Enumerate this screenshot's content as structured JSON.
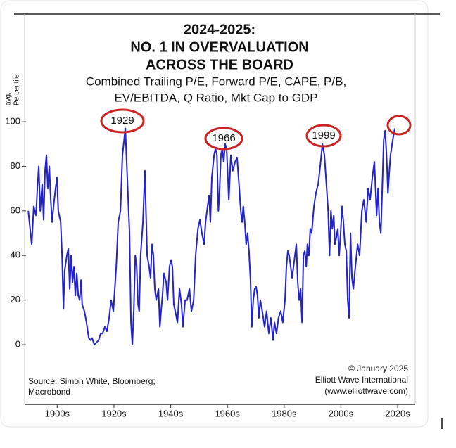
{
  "chart_data": {
    "type": "line",
    "title": [
      "2024-2025:",
      "NO. 1 IN OVERVALUATION",
      "ACROSS THE BOARD"
    ],
    "subtitle": [
      "Combined Trailing P/E, Forward P/E, CAPE, P/B,",
      "EV/EBITDA, Q Ratio, Mkt Cap to GDP"
    ],
    "y_label": [
      "avg.",
      "Percentile"
    ],
    "source": [
      "Source: Simon White, Bloomberg;",
      "Macrobond"
    ],
    "credit": [
      "© January 2025",
      "Elliott Wave International",
      "(www.elliottwave.com)"
    ],
    "annotations": [
      "1929",
      "1966",
      "1999"
    ],
    "x": [
      1894.8,
      1895.2,
      1896.0,
      1896.7,
      1897.5,
      1898.0,
      1898.5,
      1899.0,
      1899.7,
      1900.2,
      1900.7,
      1901.2,
      1901.7,
      1902.2,
      1902.7,
      1903.2,
      1903.7,
      1904.4,
      1904.9,
      1905.4,
      1906.2,
      1906.7,
      1907.2,
      1907.6,
      1908.4,
      1908.9,
      1909.4,
      1909.9,
      1910.4,
      1910.9,
      1911.4,
      1911.9,
      1912.4,
      1912.9,
      1913.4,
      1913.8,
      1914.6,
      1915.3,
      1916.1,
      1916.8,
      1917.3,
      1918.1,
      1918.8,
      1919.6,
      1920.3,
      1921.0,
      1921.8,
      1922.5,
      1923.3,
      1924.0,
      1924.8,
      1925.8,
      1926.5,
      1927.3,
      1928.0,
      1929.0,
      1929.7,
      1930.5,
      1931.0,
      1931.5,
      1932.0,
      1932.5,
      1933.0,
      1933.5,
      1933.9,
      1934.4,
      1935.2,
      1935.9,
      1936.7,
      1937.4,
      1937.9,
      1938.4,
      1938.9,
      1939.4,
      1939.9,
      1940.7,
      1941.2,
      1941.6,
      1942.1,
      1942.6,
      1943.4,
      1943.9,
      1944.6,
      1945.1,
      1945.6,
      1946.1,
      1946.6,
      1947.4,
      1948.1,
      1948.8,
      1949.3,
      1950.1,
      1950.8,
      1951.6,
      1952.3,
      1953.1,
      1953.8,
      1954.6,
      1955.3,
      1956.0,
      1956.8,
      1957.3,
      1958.0,
      1958.5,
      1959.0,
      1959.5,
      1960.3,
      1960.8,
      1961.3,
      1961.8,
      1962.2,
      1962.7,
      1963.2,
      1963.7,
      1964.2,
      1964.7,
      1965.5,
      1966.2,
      1966.9,
      1967.7,
      1968.4,
      1969.2,
      1969.7,
      1970.2,
      1970.6,
      1971.1,
      1971.6,
      1972.1,
      1972.6,
      1973.1,
      1973.6,
      1974.1,
      1974.6,
      1975.1,
      1975.6,
      1976.1,
      1976.6,
      1977.3,
      1978.1,
      1978.8,
      1979.6,
      1980.3,
      1981.1,
      1981.6,
      1982.3,
      1983.0,
      1983.8,
      1984.5,
      1985.3,
      1985.8,
      1986.3,
      1986.8,
      1987.3,
      1987.8,
      1988.3,
      1988.8,
      1989.3,
      1989.8,
      1990.3,
      1990.8,
      1991.3,
      1991.8,
      1992.3,
      1992.8,
      1993.2,
      1993.7,
      1994.2,
      1994.7,
      1995.5,
      1996.2,
      1997.0,
      1997.7,
      1998.5,
      1999.2,
      2000.0,
      2000.5,
      2001.0,
      2001.5,
      2002.0,
      2002.5,
      2002.9,
      2003.4,
      2003.9,
      2004.4,
      2004.9,
      2005.4,
      2005.9,
      2006.4,
      2006.9,
      2007.4,
      2007.9,
      2008.4,
      2008.9,
      2009.4,
      2010.1,
      2010.9,
      2011.6,
      2012.4,
      2013.1,
      2013.9,
      2014.6,
      2015.3,
      2016.1,
      2016.8,
      2017.6,
      2018.1,
      2018.6,
      2019.1,
      2019.6,
      2020.1,
      2020.6,
      2021.1,
      2021.6,
      2022.1,
      2022.5,
      2023.3,
      2024.0
    ],
    "series": [
      {
        "name": "avg. Percentile",
        "color": "#2323c8",
        "values": [
          60,
          55,
          45,
          62,
          58,
          70,
          80,
          60,
          72,
          56,
          78,
          85,
          70,
          80,
          65,
          55,
          62,
          70,
          75,
          60,
          55,
          40,
          16,
          33,
          40,
          43,
          25,
          40,
          28,
          35,
          22,
          32,
          22,
          20,
          29,
          18,
          15,
          10,
          3,
          2,
          3,
          0,
          1,
          2,
          5,
          5,
          8,
          6,
          12,
          20,
          15,
          35,
          55,
          60,
          85,
          97,
          75,
          50,
          10,
          0,
          16,
          40,
          35,
          18,
          15,
          40,
          55,
          78,
          40,
          35,
          30,
          45,
          40,
          25,
          20,
          25,
          8,
          15,
          22,
          32,
          28,
          20,
          35,
          38,
          35,
          18,
          15,
          10,
          25,
          18,
          8,
          20,
          20,
          25,
          15,
          20,
          40,
          52,
          56,
          50,
          45,
          55,
          62,
          67,
          55,
          75,
          85,
          88,
          85,
          60,
          68,
          85,
          88,
          82,
          90,
          88,
          65,
          85,
          78,
          82,
          84,
          70,
          60,
          55,
          62,
          55,
          45,
          50,
          42,
          30,
          8,
          20,
          25,
          26,
          22,
          12,
          20,
          15,
          8,
          15,
          5,
          12,
          2,
          10,
          5,
          12,
          15,
          10,
          20,
          35,
          42,
          40,
          35,
          30,
          35,
          40,
          45,
          28,
          20,
          25,
          10,
          40,
          42,
          35,
          45,
          40,
          52,
          50,
          62,
          68,
          72,
          80,
          90,
          85,
          70,
          60,
          40,
          60,
          52,
          58,
          45,
          48,
          52,
          40,
          50,
          62,
          55,
          45,
          42,
          20,
          12,
          50,
          30,
          25,
          35,
          45,
          40,
          60,
          65,
          55,
          70,
          65,
          75,
          82,
          58,
          70,
          55,
          50,
          70,
          92,
          96,
          85,
          68,
          78,
          85,
          92,
          97
        ]
      }
    ],
    "xlim": [
      1894.0,
      2031.2
    ],
    "xticks": [
      {
        "value": 1905,
        "label": "1900s"
      },
      {
        "value": 1925,
        "label": "1920s"
      },
      {
        "value": 1945,
        "label": "1940s"
      },
      {
        "value": 1965,
        "label": "1960s"
      },
      {
        "value": 1985,
        "label": "1980s"
      },
      {
        "value": 2005,
        "label": "2000s"
      },
      {
        "value": 2025,
        "label": "2020s"
      }
    ],
    "ylim": [
      -26.8,
      148.3
    ],
    "yticks": [
      0,
      20,
      40,
      60,
      80,
      100
    ]
  }
}
